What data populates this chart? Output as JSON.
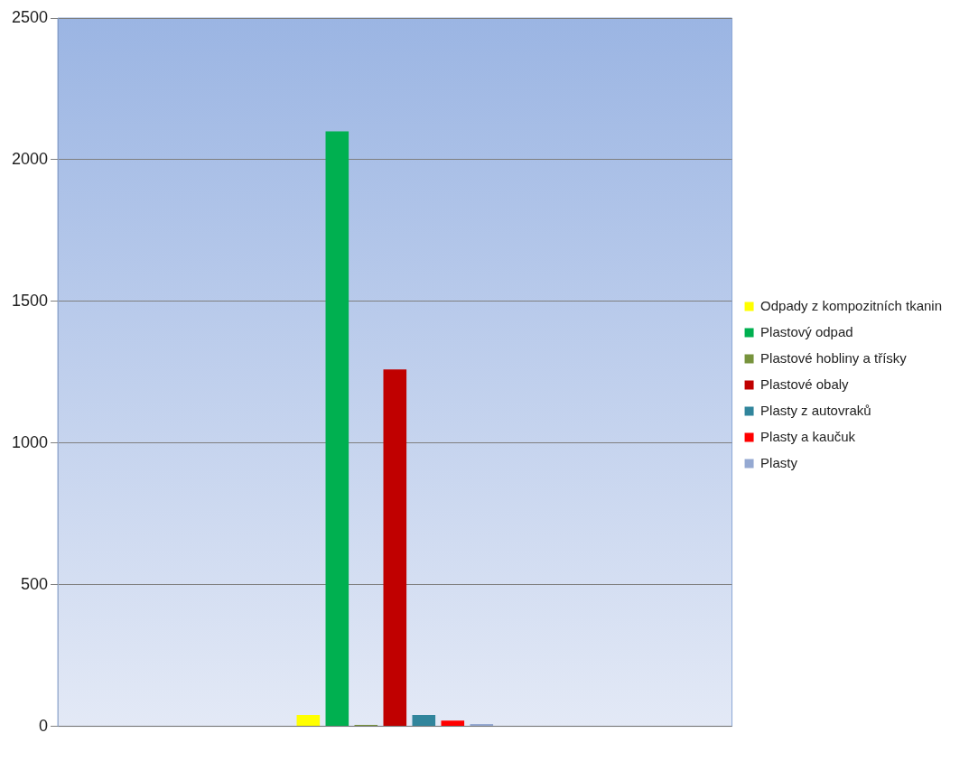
{
  "chart_data": {
    "type": "bar",
    "categories": [
      null
    ],
    "series": [
      {
        "name": "Odpady z kompozitních tkanin",
        "color": "#ffff00",
        "values": [
          40
        ]
      },
      {
        "name": "Plastový odpad",
        "color": "#00b050",
        "values": [
          2100
        ]
      },
      {
        "name": "Plastové hobliny a třísky",
        "color": "#77933c",
        "values": [
          5
        ]
      },
      {
        "name": "Plastové obaly",
        "color": "#c00000",
        "values": [
          1260
        ]
      },
      {
        "name": "Plasty z autovraků",
        "color": "#31859c",
        "values": [
          40
        ]
      },
      {
        "name": "Plasty a kaučuk",
        "color": "#ff0000",
        "values": [
          20
        ]
      },
      {
        "name": "Plasty",
        "color": "#95a9d2",
        "values": [
          8
        ]
      }
    ],
    "ylim": [
      0,
      2500
    ],
    "yticks": [
      0,
      500,
      1000,
      1500,
      2000,
      2500
    ],
    "grid": "y",
    "legend": "right"
  }
}
